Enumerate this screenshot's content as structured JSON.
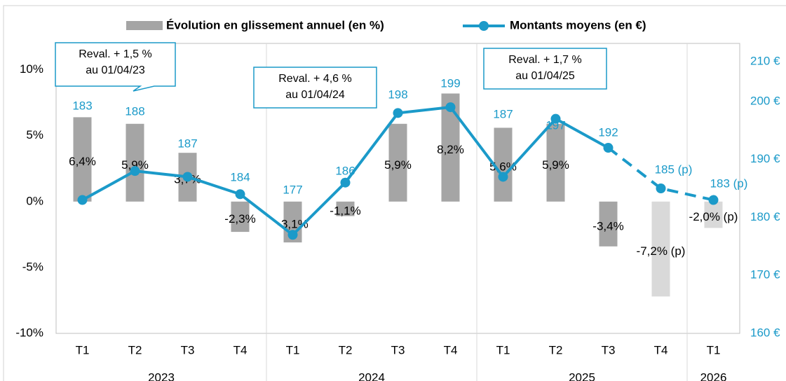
{
  "chart_data": {
    "type": "bar-line",
    "categories": [
      "T1",
      "T2",
      "T3",
      "T4",
      "T1",
      "T2",
      "T3",
      "T4",
      "T1",
      "T2",
      "T3",
      "T4",
      "T1"
    ],
    "groups": [
      {
        "label": "2023",
        "count": 4
      },
      {
        "label": "2024",
        "count": 4
      },
      {
        "label": "2025",
        "count": 4
      },
      {
        "label": "2026",
        "count": 1
      }
    ],
    "projected": [
      false,
      false,
      false,
      false,
      false,
      false,
      false,
      false,
      false,
      false,
      false,
      true,
      true
    ],
    "series": [
      {
        "name": "Évolution en glissement annuel (en %)",
        "type": "bar",
        "color": "#a5a5a5",
        "projected_color": "#d9d9d9",
        "values": [
          6.4,
          5.9,
          3.7,
          -2.3,
          -3.1,
          -1.1,
          5.9,
          8.2,
          5.6,
          5.9,
          -3.4,
          -7.2,
          -2.0
        ],
        "value_labels": [
          "6,4%",
          "5,9%",
          "3,7%",
          "-2,3%",
          "-3,1%",
          "-1,1%",
          "5,9%",
          "8,2%",
          "5,6%",
          "5,9%",
          "-3,4%",
          "-7,2% (p)",
          "-2,0% (p)"
        ]
      },
      {
        "name": "Montants moyens (en €)",
        "type": "line",
        "axis": "y2",
        "color": "#1b9ac9",
        "values": [
          183,
          188,
          187,
          184,
          177,
          186,
          198,
          199,
          187,
          197,
          192,
          185,
          183
        ],
        "value_labels": [
          "183",
          "188",
          "187",
          "184",
          "177",
          "186",
          "198",
          "199",
          "187",
          "197",
          "192",
          "185 (p)",
          "183 (p)"
        ]
      }
    ],
    "ylim": [
      -10,
      12
    ],
    "yticks": [
      {
        "value": 10,
        "label": "10%"
      },
      {
        "value": 5,
        "label": "5%"
      },
      {
        "value": 0,
        "label": "0%"
      },
      {
        "value": -5,
        "label": "-5%"
      },
      {
        "value": -10,
        "label": "-10%"
      }
    ],
    "y2lim": [
      160,
      210
    ],
    "y2ticks": [
      {
        "value": 210,
        "label": "210 €"
      },
      {
        "value": 200,
        "label": "200 €"
      },
      {
        "value": 190,
        "label": "190 €"
      },
      {
        "value": 180,
        "label": "180 €"
      },
      {
        "value": 170,
        "label": "170 €"
      },
      {
        "value": 160,
        "label": "160 €"
      }
    ],
    "annotations": [
      {
        "lines": [
          "Reval. + 1,5 %",
          "au 01/04/23"
        ]
      },
      {
        "lines": [
          "Reval. + 4,6 %",
          "au 01/04/24"
        ]
      },
      {
        "lines": [
          "Reval. + 1,7 %",
          "au 01/04/25"
        ]
      }
    ]
  }
}
